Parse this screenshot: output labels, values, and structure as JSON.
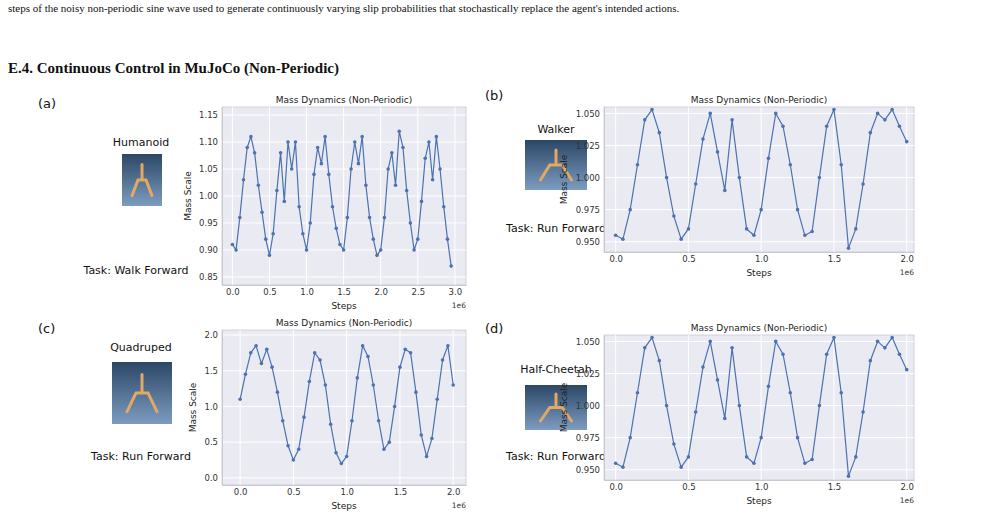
{
  "caption_fragment": "steps of the noisy non-periodic sine wave used to generate continuously varying slip probabilities that stochastically replace the agent's intended actions.",
  "heading": "E.4. Continuous Control in MuJoCo (Non-Periodic)",
  "panels": [
    {
      "letter": "(a)",
      "name": "Humanoid",
      "task": "Task: Walk Forward"
    },
    {
      "letter": "(b)",
      "name": "Walker",
      "task": "Task: Run Forward"
    },
    {
      "letter": "(c)",
      "name": "Quadruped",
      "task": "Task: Run Forward"
    },
    {
      "letter": "(d)",
      "name": "Half-Cheetah",
      "task": "Task: Run Forward"
    }
  ],
  "chart_data": [
    {
      "type": "line",
      "title": "Mass Dynamics (Non-Periodic)",
      "x_label": "Steps",
      "y_label": "Mass Scale",
      "x_offset_text": "1e6",
      "grid": true,
      "color": "#4c72b0",
      "marker": "circle",
      "xlim": [
        -0.14,
        3.15
      ],
      "ylim": [
        0.835,
        1.165
      ],
      "xticks": [
        {
          "value": 0,
          "label": "0.0"
        },
        0.5,
        {
          "value": 1,
          "label": "1.0"
        },
        1.5,
        {
          "value": 2,
          "label": "2.0"
        },
        2.5,
        {
          "value": 3,
          "label": "3.0"
        }
      ],
      "yticks": [
        0.85,
        {
          "value": 0.9,
          "label": "0.90"
        },
        0.95,
        {
          "value": 1,
          "label": "1.00"
        },
        1.05,
        {
          "value": 1.1,
          "label": "1.10"
        },
        1.15
      ],
      "x": [
        0.0,
        0.05,
        0.1,
        0.15,
        0.2,
        0.25,
        0.3,
        0.35,
        0.4,
        0.45,
        0.5,
        0.55,
        0.6,
        0.65,
        0.7,
        0.75,
        0.8,
        0.85,
        0.9,
        0.95,
        1.0,
        1.05,
        1.1,
        1.15,
        1.2,
        1.25,
        1.3,
        1.35,
        1.4,
        1.45,
        1.5,
        1.55,
        1.6,
        1.65,
        1.7,
        1.75,
        1.8,
        1.85,
        1.9,
        1.95,
        2.0,
        2.05,
        2.1,
        2.15,
        2.2,
        2.25,
        2.3,
        2.35,
        2.4,
        2.45,
        2.5,
        2.55,
        2.6,
        2.65,
        2.7,
        2.75,
        2.8,
        2.85,
        2.9,
        2.95
      ],
      "values": [
        0.91,
        0.9,
        0.96,
        1.03,
        1.09,
        1.11,
        1.08,
        1.02,
        0.97,
        0.92,
        0.89,
        0.93,
        1.01,
        1.08,
        0.99,
        1.1,
        1.05,
        1.1,
        0.98,
        0.93,
        0.9,
        0.95,
        1.04,
        1.09,
        1.06,
        1.11,
        1.04,
        0.98,
        0.94,
        0.91,
        0.9,
        0.96,
        1.05,
        1.1,
        1.06,
        1.11,
        1.02,
        0.96,
        0.92,
        0.89,
        0.9,
        0.96,
        1.05,
        1.08,
        1.02,
        1.12,
        1.09,
        1.01,
        0.95,
        0.9,
        0.92,
        0.99,
        1.07,
        1.1,
        1.03,
        1.11,
        1.05,
        0.98,
        0.92,
        0.87
      ]
    },
    {
      "type": "line",
      "title": "Mass Dynamics (Non-Periodic)",
      "x_label": "Steps",
      "y_label": "Mass Scale",
      "x_offset_text": "1e6",
      "grid": true,
      "color": "#4c72b0",
      "marker": "circle",
      "xlim": [
        -0.08,
        2.05
      ],
      "ylim": [
        0.942,
        1.055
      ],
      "xticks": [
        {
          "value": 0,
          "label": "0.0"
        },
        0.5,
        {
          "value": 1,
          "label": "1.0"
        },
        1.5,
        {
          "value": 2,
          "label": "2.0"
        }
      ],
      "yticks": [
        {
          "value": 0.95,
          "label": "0.950"
        },
        0.975,
        {
          "value": 1,
          "label": "1.000"
        },
        1.025,
        {
          "value": 1.05,
          "label": "1.050"
        }
      ],
      "x": [
        0.0,
        0.05,
        0.1,
        0.15,
        0.2,
        0.25,
        0.3,
        0.35,
        0.4,
        0.45,
        0.5,
        0.55,
        0.6,
        0.65,
        0.7,
        0.75,
        0.8,
        0.85,
        0.9,
        0.95,
        1.0,
        1.05,
        1.1,
        1.15,
        1.2,
        1.25,
        1.3,
        1.35,
        1.4,
        1.45,
        1.5,
        1.55,
        1.6,
        1.65,
        1.7,
        1.75,
        1.8,
        1.85,
        1.9,
        1.95,
        2.0
      ],
      "values": [
        0.955,
        0.952,
        0.975,
        1.01,
        1.045,
        1.053,
        1.035,
        1.0,
        0.97,
        0.952,
        0.96,
        0.995,
        1.03,
        1.05,
        1.02,
        0.99,
        1.045,
        1.0,
        0.96,
        0.955,
        0.975,
        1.015,
        1.05,
        1.04,
        1.01,
        0.975,
        0.955,
        0.958,
        1.0,
        1.04,
        1.053,
        1.01,
        0.945,
        0.96,
        0.995,
        1.035,
        1.05,
        1.045,
        1.053,
        1.04,
        1.028
      ]
    },
    {
      "type": "line",
      "title": "Mass Dynamics (Non-Periodic)",
      "x_label": "Steps",
      "y_label": "Mass Scale",
      "x_offset_text": "1e6",
      "grid": true,
      "color": "#4c72b0",
      "marker": "circle",
      "xlim": [
        -0.17,
        2.12
      ],
      "ylim": [
        -0.1,
        2.07
      ],
      "xticks": [
        {
          "value": 0,
          "label": "0.0"
        },
        0.5,
        {
          "value": 1,
          "label": "1.0"
        },
        1.5,
        {
          "value": 2,
          "label": "2.0"
        }
      ],
      "yticks": [
        {
          "value": 0,
          "label": "0.0"
        },
        0.5,
        {
          "value": 1,
          "label": "1.0"
        },
        1.5,
        {
          "value": 2,
          "label": "2.0"
        }
      ],
      "x": [
        0.0,
        0.05,
        0.1,
        0.15,
        0.2,
        0.25,
        0.3,
        0.35,
        0.4,
        0.45,
        0.5,
        0.55,
        0.6,
        0.65,
        0.7,
        0.75,
        0.8,
        0.85,
        0.9,
        0.95,
        1.0,
        1.05,
        1.1,
        1.15,
        1.2,
        1.25,
        1.3,
        1.35,
        1.4,
        1.45,
        1.5,
        1.55,
        1.6,
        1.65,
        1.7,
        1.75,
        1.8,
        1.85,
        1.9,
        1.95,
        2.0
      ],
      "values": [
        1.1,
        1.45,
        1.75,
        1.85,
        1.6,
        1.8,
        1.55,
        1.2,
        0.8,
        0.45,
        0.25,
        0.4,
        0.85,
        1.35,
        1.75,
        1.65,
        1.3,
        0.75,
        0.35,
        0.2,
        0.3,
        0.8,
        1.4,
        1.85,
        1.7,
        1.3,
        0.8,
        0.4,
        0.5,
        1.0,
        1.55,
        1.8,
        1.75,
        1.2,
        0.6,
        0.3,
        0.55,
        1.1,
        1.65,
        1.85,
        1.3
      ]
    },
    {
      "type": "line",
      "title": "Mass Dynamics (Non-Periodic)",
      "x_label": "Steps",
      "y_label": "Mass Scale",
      "x_offset_text": "1e6",
      "grid": true,
      "color": "#4c72b0",
      "marker": "circle",
      "xlim": [
        -0.08,
        2.05
      ],
      "ylim": [
        0.942,
        1.055
      ],
      "xticks": [
        {
          "value": 0,
          "label": "0.0"
        },
        0.5,
        {
          "value": 1,
          "label": "1.0"
        },
        1.5,
        {
          "value": 2,
          "label": "2.0"
        }
      ],
      "yticks": [
        {
          "value": 0.95,
          "label": "0.950"
        },
        0.975,
        {
          "value": 1,
          "label": "1.000"
        },
        1.025,
        {
          "value": 1.05,
          "label": "1.050"
        }
      ],
      "x": [
        0.0,
        0.05,
        0.1,
        0.15,
        0.2,
        0.25,
        0.3,
        0.35,
        0.4,
        0.45,
        0.5,
        0.55,
        0.6,
        0.65,
        0.7,
        0.75,
        0.8,
        0.85,
        0.9,
        0.95,
        1.0,
        1.05,
        1.1,
        1.15,
        1.2,
        1.25,
        1.3,
        1.35,
        1.4,
        1.45,
        1.5,
        1.55,
        1.6,
        1.65,
        1.7,
        1.75,
        1.8,
        1.85,
        1.9,
        1.95,
        2.0
      ],
      "values": [
        0.955,
        0.952,
        0.975,
        1.01,
        1.045,
        1.053,
        1.035,
        1.0,
        0.97,
        0.952,
        0.96,
        0.995,
        1.03,
        1.05,
        1.02,
        0.99,
        1.045,
        1.0,
        0.96,
        0.955,
        0.975,
        1.015,
        1.05,
        1.04,
        1.01,
        0.975,
        0.955,
        0.958,
        1.0,
        1.04,
        1.053,
        1.01,
        0.945,
        0.96,
        0.995,
        1.035,
        1.05,
        1.045,
        1.053,
        1.04,
        1.028
      ]
    }
  ]
}
